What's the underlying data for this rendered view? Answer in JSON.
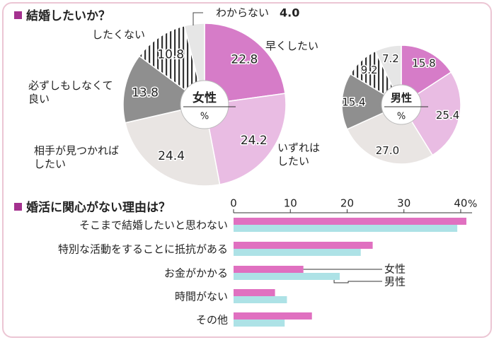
{
  "chart_data": [
    {
      "type": "pie",
      "title": "結婚したいか？",
      "unit": "%",
      "categories": [
        "早くしたい",
        "いずれはしたい",
        "相手が見つかればしたい",
        "必ずしもしなくて良い",
        "したくない",
        "わからない"
      ],
      "series": [
        {
          "name": "女性",
          "label_color": "#7a2a80",
          "hatch": 4,
          "colors": [
            "#d67cc8",
            "#e9bce3",
            "#e9e5e3",
            "#8f8f8f",
            "#ffffff",
            "#e6e6e6"
          ],
          "values": [
            22.8,
            24.2,
            24.4,
            13.8,
            10.8,
            4.0
          ],
          "value_labels": [
            "22.8",
            "24.2",
            "24.4",
            "13.8",
            "10.8",
            "4.0"
          ]
        },
        {
          "name": "男性",
          "label_color": "#2f5fb0",
          "hatch": 4,
          "colors": [
            "#d67cc8",
            "#e9bce3",
            "#e9e5e3",
            "#8f8f8f",
            "#ffffff",
            "#e6e6e6"
          ],
          "values": [
            15.8,
            25.4,
            27.0,
            15.4,
            9.2,
            7.2
          ],
          "value_labels": [
            "15.8",
            "25.4",
            "27.0",
            "15.4",
            "9.2",
            "7.2"
          ]
        }
      ]
    },
    {
      "type": "bar",
      "orientation": "horizontal",
      "title": "婚活に関心がない理由は？",
      "unit": "%",
      "categories": [
        "そこまで結婚したいと思わない",
        "特別な活動をすることに抵抗がある",
        "お金がかかる",
        "時間がない",
        "その他"
      ],
      "series": [
        {
          "name": "女性",
          "color": "#e070c0",
          "values": [
            41,
            24.5,
            12.3,
            7.3,
            13.8
          ]
        },
        {
          "name": "男性",
          "color": "#ade2e6",
          "values": [
            39.4,
            22.4,
            18.7,
            9.4,
            9.0
          ]
        }
      ],
      "xlim": [
        0,
        42
      ],
      "xticks": [
        0,
        10,
        20,
        30,
        40
      ]
    }
  ]
}
